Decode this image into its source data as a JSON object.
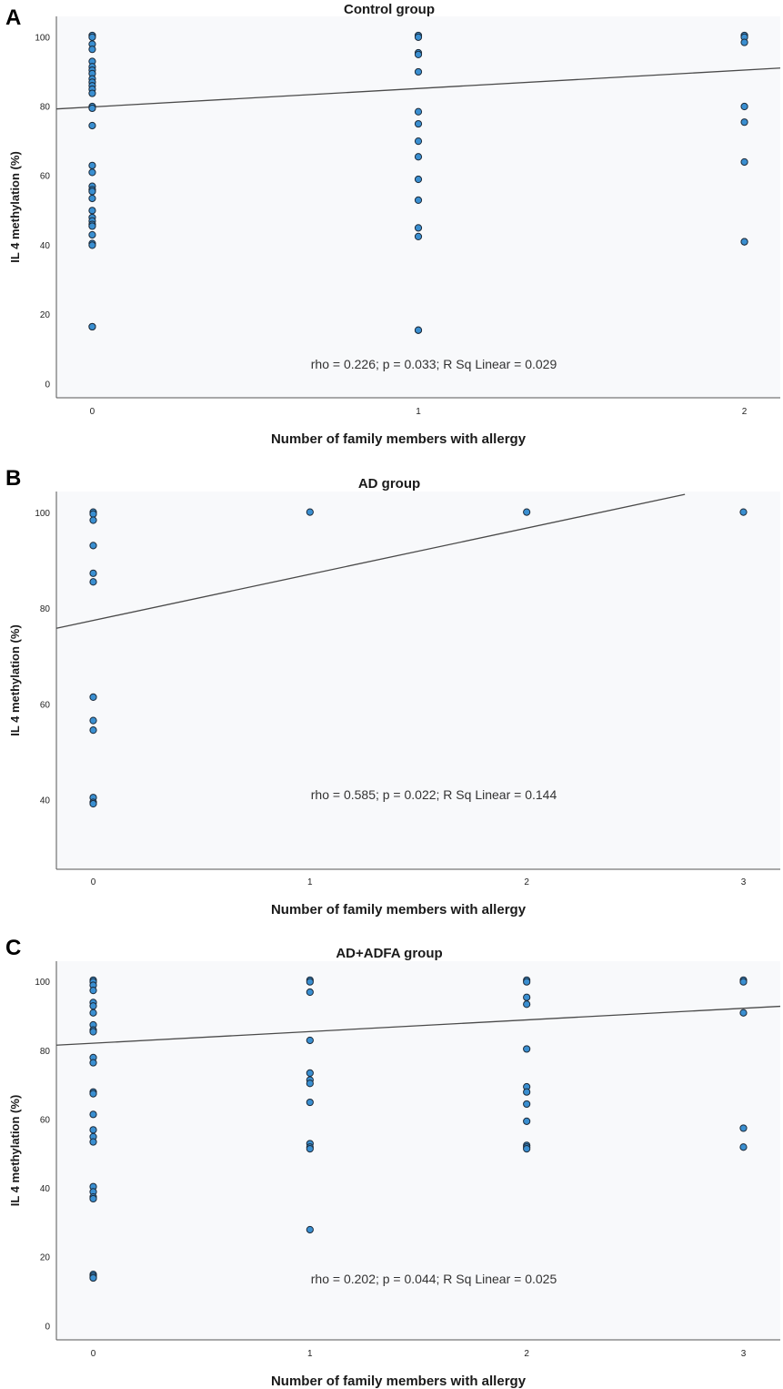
{
  "chart_data": [
    {
      "type": "scatter",
      "panel": "A",
      "title": "Control group",
      "xlabel": "Number of family members with allergy",
      "ylabel": "IL 4 methylation (%)",
      "annotation": "rho = 0.226; p = 0.033; R Sq Linear = 0.029",
      "xlim": [
        -0.11,
        2.11
      ],
      "ylim": [
        -4,
        106
      ],
      "xticks": [
        0,
        1,
        2
      ],
      "yticks": [
        0,
        20,
        40,
        60,
        80,
        100
      ],
      "fit": {
        "x": [
          -0.11,
          2.11
        ],
        "y": [
          79.3,
          91.1
        ]
      },
      "points": {
        "x": [
          0,
          0,
          0,
          0,
          0,
          0,
          0,
          0,
          0,
          0,
          0,
          0,
          0,
          0,
          0,
          0,
          0,
          0,
          0,
          0,
          0,
          0,
          0,
          0,
          0,
          0,
          0,
          0,
          0,
          0,
          0,
          0,
          1,
          1,
          1,
          1,
          1,
          1,
          1,
          1,
          1,
          1,
          1,
          1,
          1,
          1,
          1,
          2,
          2,
          2,
          2,
          2,
          2,
          2,
          2
        ],
        "y": [
          100.5,
          100,
          98,
          96.5,
          93,
          91.5,
          90.5,
          89.5,
          88,
          87,
          86,
          85,
          83.8,
          80,
          79.5,
          74.5,
          63,
          61,
          57,
          56,
          55.5,
          53.5,
          50,
          48,
          47,
          46,
          45.5,
          43,
          40.5,
          40,
          16.5,
          16.5,
          100.5,
          100,
          95.5,
          95,
          90,
          78.5,
          75,
          70,
          65.5,
          59,
          53,
          45,
          42.5,
          15.5,
          15.5,
          100.5,
          100,
          98.5,
          80,
          75.5,
          64,
          41,
          41
        ]
      }
    },
    {
      "type": "scatter",
      "panel": "B",
      "title": "AD group",
      "xlabel": "Number of family members with allergy",
      "ylabel": "IL 4 methylation (%)",
      "annotation": "rho = 0.585; p = 0.022; R Sq Linear = 0.144",
      "xlim": [
        -0.17,
        3.17
      ],
      "ylim": [
        25.5,
        104.5
      ],
      "xticks": [
        0,
        1,
        2,
        3
      ],
      "yticks": [
        40,
        60,
        80,
        100
      ],
      "fit": {
        "x": [
          -0.17,
          2.73
        ],
        "y": [
          75.9,
          103.9
        ]
      },
      "points": {
        "x": [
          0,
          0,
          0,
          0,
          0,
          0,
          0,
          0,
          0,
          0,
          0,
          0,
          1,
          2,
          3
        ],
        "y": [
          100.2,
          99.8,
          98.5,
          93.2,
          87.4,
          85.6,
          61.5,
          56.6,
          54.6,
          40.5,
          39.5,
          39.2,
          100.2,
          100.2,
          100.2
        ]
      }
    },
    {
      "type": "scatter",
      "panel": "C",
      "title": "AD+ADFA group",
      "xlabel": "Number of family members with allergy",
      "ylabel": "IL 4 methylation (%)",
      "annotation": "rho = 0.202; p = 0.044; R Sq Linear = 0.025",
      "xlim": [
        -0.17,
        3.17
      ],
      "ylim": [
        -4,
        106
      ],
      "xticks": [
        0,
        1,
        2,
        3
      ],
      "yticks": [
        0,
        20,
        40,
        60,
        80,
        100
      ],
      "fit": {
        "x": [
          -0.17,
          3.17
        ],
        "y": [
          81.6,
          92.9
        ]
      },
      "points": {
        "x": [
          0,
          0,
          0,
          0,
          0,
          0,
          0,
          0,
          0,
          0,
          0,
          0,
          0,
          0,
          0,
          0,
          0,
          0,
          0,
          0,
          0,
          0,
          0,
          0,
          0,
          0,
          1,
          1,
          1,
          1,
          1,
          1,
          1,
          1,
          1,
          1,
          1,
          1,
          2,
          2,
          2,
          2,
          2,
          2,
          2,
          2,
          2,
          2,
          2,
          2,
          3,
          3,
          3,
          3,
          3
        ],
        "y": [
          100.5,
          100,
          99,
          97.5,
          94,
          93,
          91,
          87.5,
          86,
          85.5,
          78,
          76.5,
          68,
          67.5,
          61.5,
          57,
          55,
          53.5,
          40.5,
          39,
          37.5,
          37,
          15,
          14.5,
          14,
          14,
          100.5,
          100,
          97,
          83,
          73.5,
          71.5,
          70.5,
          65,
          53,
          52,
          51.5,
          28,
          100.5,
          100,
          95.5,
          93.5,
          80.5,
          69.5,
          68,
          64.5,
          59.5,
          52.5,
          52,
          51.5,
          100.5,
          100,
          91,
          57.5,
          52
        ]
      }
    }
  ]
}
